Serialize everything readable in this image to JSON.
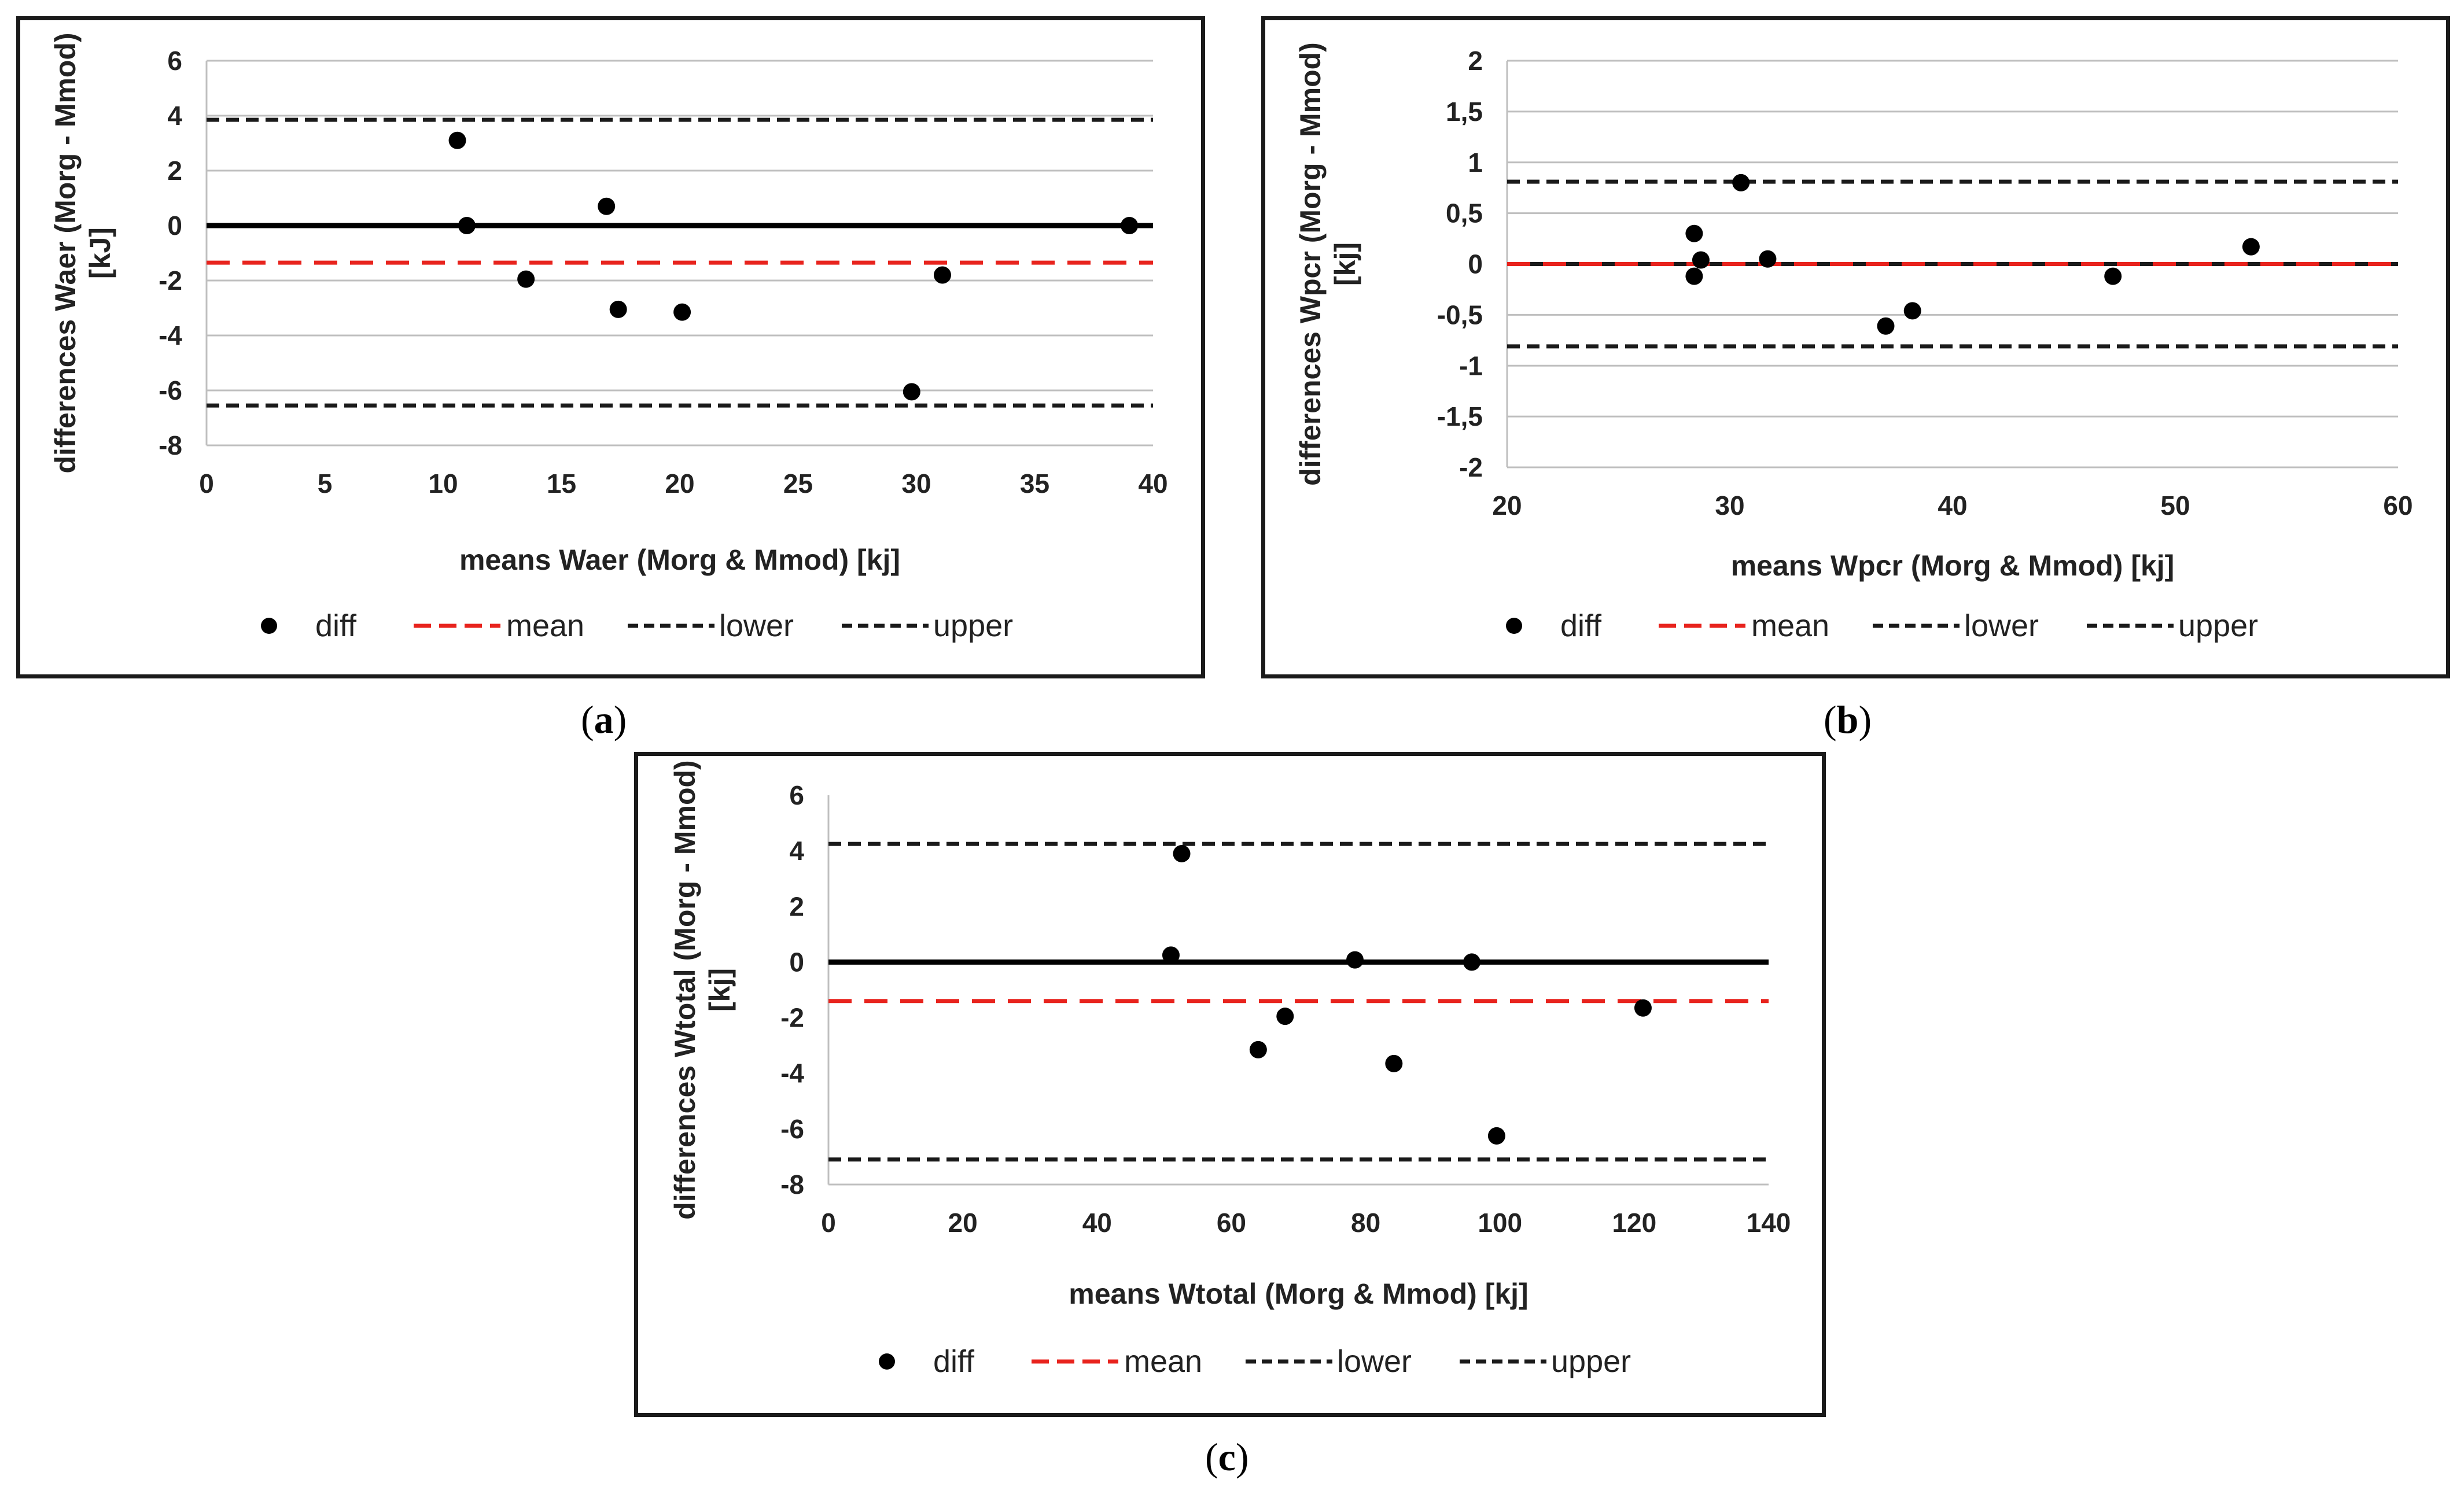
{
  "colors": {
    "points": "#000000",
    "mean": "#e8231d",
    "limits": "#1a1a1a",
    "zero": "#000000",
    "grid": "#bfbfbf"
  },
  "captions": [
    {
      "open": "(",
      "letter": "a",
      "close": ")"
    },
    {
      "open": "(",
      "letter": "b",
      "close": ")"
    },
    {
      "open": "(",
      "letter": "c",
      "close": ")"
    }
  ],
  "chart_data": [
    {
      "type": "scatter",
      "ylabel_line1": "differences Waer (Morg - Mmod)",
      "ylabel_line2": "[kJ]",
      "xlabel": "means Waer (Morg & Mmod) [kj]",
      "xlim": [
        0,
        40
      ],
      "ylim": [
        -8,
        6
      ],
      "xticks": [
        0,
        5,
        10,
        15,
        20,
        25,
        30,
        35,
        40
      ],
      "yticks": [
        -8,
        -6,
        -4,
        -2,
        0,
        2,
        4,
        6
      ],
      "xtick_labels": [
        "0",
        "5",
        "10",
        "15",
        "20",
        "25",
        "30",
        "35",
        "40"
      ],
      "ytick_labels": [
        "-8",
        "-6",
        "-4",
        "-2",
        "0",
        "2",
        "4",
        "6"
      ],
      "grid": true,
      "points": [
        {
          "x": 10.6,
          "y": 3.1
        },
        {
          "x": 11.0,
          "y": 0.0
        },
        {
          "x": 13.5,
          "y": -1.95
        },
        {
          "x": 16.9,
          "y": 0.7
        },
        {
          "x": 17.4,
          "y": -3.05
        },
        {
          "x": 20.1,
          "y": -3.15
        },
        {
          "x": 29.8,
          "y": -6.05
        },
        {
          "x": 31.1,
          "y": -1.8
        },
        {
          "x": 39.0,
          "y": 0.0
        }
      ],
      "mean": -1.35,
      "lower": -6.55,
      "upper": 3.85,
      "zero_line": true,
      "legend": [
        "diff",
        "mean",
        "lower",
        "upper"
      ],
      "legend_position": "bottom"
    },
    {
      "type": "scatter",
      "ylabel_line1": "differences Wpcr (Morg - Mmod)",
      "ylabel_line2": "[kj]",
      "xlabel": "means Wpcr (Morg & Mmod) [kj]",
      "xlim": [
        20,
        60
      ],
      "ylim": [
        -2,
        2
      ],
      "xticks": [
        20,
        30,
        40,
        50,
        60
      ],
      "yticks": [
        -2,
        -1.5,
        -1,
        -0.5,
        0,
        0.5,
        1,
        1.5,
        2
      ],
      "xtick_labels": [
        "20",
        "30",
        "40",
        "50",
        "60"
      ],
      "ytick_labels": [
        "-2",
        "-1,5",
        "-1",
        "-0,5",
        "0",
        "0,5",
        "1",
        "1,5",
        "2"
      ],
      "grid": true,
      "points": [
        {
          "x": 28.4,
          "y": 0.3
        },
        {
          "x": 28.4,
          "y": -0.12
        },
        {
          "x": 28.7,
          "y": 0.04
        },
        {
          "x": 30.5,
          "y": 0.8
        },
        {
          "x": 31.7,
          "y": 0.05
        },
        {
          "x": 37.0,
          "y": -0.61
        },
        {
          "x": 38.2,
          "y": -0.46
        },
        {
          "x": 47.2,
          "y": -0.12
        },
        {
          "x": 53.4,
          "y": 0.17
        }
      ],
      "mean": 0.0,
      "lower": -0.81,
      "upper": 0.81,
      "zero_line": false,
      "legend": [
        "diff",
        "mean",
        "lower",
        "upper"
      ],
      "legend_position": "bottom"
    },
    {
      "type": "scatter",
      "ylabel_line1": "differences Wtotal (Morg - Mmod)",
      "ylabel_line2": "[kj]",
      "xlabel": "means Wtotal (Morg & Mmod) [kj]",
      "xlim": [
        0,
        140
      ],
      "ylim": [
        -8,
        6
      ],
      "xticks": [
        0,
        20,
        40,
        60,
        80,
        100,
        120,
        140
      ],
      "yticks": [
        -8,
        -6,
        -4,
        -2,
        0,
        2,
        4,
        6
      ],
      "xtick_labels": [
        "0",
        "20",
        "40",
        "60",
        "80",
        "100",
        "120",
        "140"
      ],
      "ytick_labels": [
        "-8",
        "-6",
        "-4",
        "-2",
        "0",
        "2",
        "4",
        "6"
      ],
      "grid": false,
      "points": [
        {
          "x": 51.0,
          "y": 0.25
        },
        {
          "x": 52.6,
          "y": 3.9
        },
        {
          "x": 64.0,
          "y": -3.15
        },
        {
          "x": 68.0,
          "y": -1.95
        },
        {
          "x": 78.4,
          "y": 0.08
        },
        {
          "x": 84.2,
          "y": -3.65
        },
        {
          "x": 95.8,
          "y": 0.0
        },
        {
          "x": 99.5,
          "y": -6.25
        },
        {
          "x": 121.3,
          "y": -1.65
        }
      ],
      "mean": -1.4,
      "lower": -7.1,
      "upper": 4.25,
      "zero_line": true,
      "legend": [
        "diff",
        "mean",
        "lower",
        "upper"
      ],
      "legend_position": "bottom"
    }
  ]
}
